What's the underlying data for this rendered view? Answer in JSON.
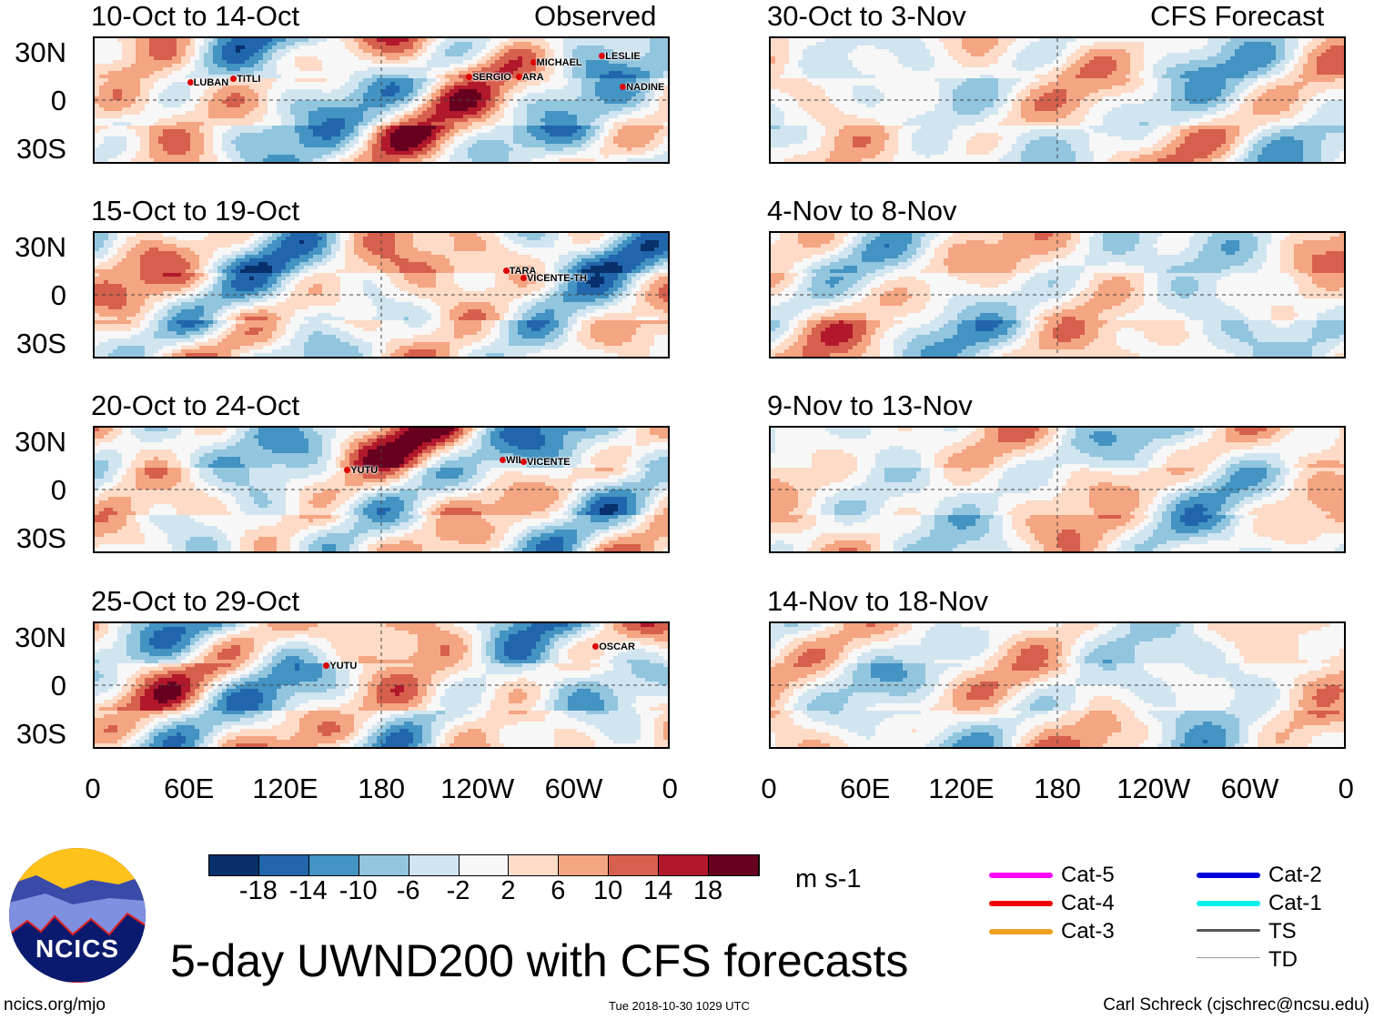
{
  "header": {
    "left_label": "Observed",
    "right_label": "CFS Forecast"
  },
  "panels": [
    {
      "title": "10-Oct to 14-Oct",
      "seed": 1,
      "storms": [
        {
          "name": "LUBAN",
          "lon": 60,
          "lat": 11
        },
        {
          "name": "TITLI",
          "lon": 87,
          "lat": 13
        },
        {
          "name": "SERGIO",
          "lon": 234,
          "lat": 14
        },
        {
          "name": "ARA",
          "lon": 265,
          "lat": 14
        },
        {
          "name": "MICHAEL",
          "lon": 274,
          "lat": 23
        },
        {
          "name": "LESLIE",
          "lon": 317,
          "lat": 27
        },
        {
          "name": "NADINE",
          "lon": 330,
          "lat": 8
        }
      ]
    },
    {
      "title": "15-Oct to 19-Oct",
      "seed": 2,
      "storms": [
        {
          "name": "TARA",
          "lon": 257,
          "lat": 15
        },
        {
          "name": "VICENTE-TH",
          "lon": 268,
          "lat": 10
        }
      ]
    },
    {
      "title": "20-Oct to 24-Oct",
      "seed": 3,
      "storms": [
        {
          "name": "YUTU",
          "lon": 158,
          "lat": 12
        },
        {
          "name": "WIL",
          "lon": 255,
          "lat": 18
        },
        {
          "name": "VICENTE",
          "lon": 268,
          "lat": 17
        }
      ]
    },
    {
      "title": "25-Oct to 29-Oct",
      "seed": 4,
      "storms": [
        {
          "name": "YUTU",
          "lon": 145,
          "lat": 12
        },
        {
          "name": "OSCAR",
          "lon": 313,
          "lat": 24
        }
      ]
    },
    {
      "title": "30-Oct to 3-Nov",
      "seed": 5,
      "storms": []
    },
    {
      "title": "4-Nov to 8-Nov",
      "seed": 6,
      "storms": []
    },
    {
      "title": "9-Nov to 13-Nov",
      "seed": 7,
      "storms": []
    },
    {
      "title": "14-Nov to 18-Nov",
      "seed": 8,
      "storms": []
    }
  ],
  "lat_labels": [
    "30N",
    "0",
    "30S"
  ],
  "lon_labels": [
    "0",
    "60E",
    "120E",
    "180",
    "120W",
    "60W",
    "0"
  ],
  "colorbar": {
    "labels": [
      "-18",
      "-14",
      "-10",
      "-6",
      "-2",
      "2",
      "6",
      "10",
      "14",
      "18"
    ],
    "units": "m s-1",
    "colors": [
      "#08306b",
      "#2166ac",
      "#4393c3",
      "#92c5de",
      "#d1e5f0",
      "#f7f7f7",
      "#fddbc7",
      "#f4a582",
      "#d6604d",
      "#b2182b",
      "#67001f"
    ]
  },
  "title": "5-day UWND200 with CFS forecasts",
  "logo_text": "NCICS",
  "url": "ncics.org/mjo",
  "timestamp": "Tue 2018-10-30 1029 UTC",
  "author": "Carl Schreck (cjschrec@ncsu.edu)",
  "legend": [
    {
      "label": "Cat-5",
      "color": "#ff00ff"
    },
    {
      "label": "Cat-4",
      "color": "#ee0000"
    },
    {
      "label": "Cat-3",
      "color": "#f0a020"
    },
    {
      "label": "Cat-2",
      "color": "#0000dd"
    },
    {
      "label": "Cat-1",
      "color": "#00eeee"
    },
    {
      "label": "TS",
      "color": "#555555"
    },
    {
      "label": "TD",
      "color": "#999999"
    }
  ]
}
